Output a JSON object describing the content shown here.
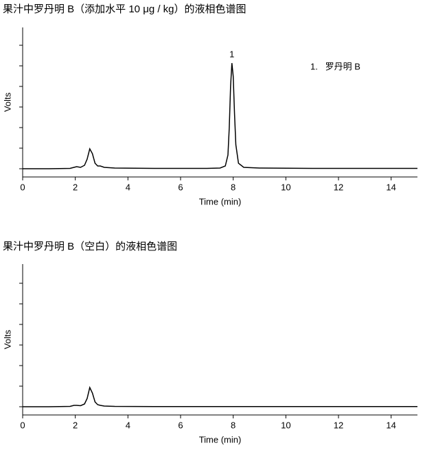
{
  "chart_data": [
    {
      "type": "line",
      "title": "果汁中罗丹明 B（添加水平 10 μg / kg）的液相色谱图",
      "xlabel": "Time (min)",
      "ylabel": "Volts",
      "annotation": "1",
      "legend_text": "1.   罗丹明 B",
      "x": [
        0,
        1,
        1.8,
        1.95,
        2.05,
        2.2,
        2.35,
        2.45,
        2.55,
        2.65,
        2.75,
        2.85,
        2.95,
        3.1,
        3.5,
        5,
        7,
        7.5,
        7.7,
        7.8,
        7.85,
        7.9,
        7.95,
        8.0,
        8.05,
        8.1,
        8.2,
        8.4,
        9,
        11,
        13,
        15
      ],
      "series": [
        {
          "color": "#000000",
          "values": [
            0,
            0,
            0.5,
            2,
            3,
            2,
            5,
            14,
            29,
            22,
            8,
            4,
            4,
            2,
            1,
            0.5,
            0.5,
            1,
            4,
            20,
            60,
            120,
            154,
            135,
            80,
            35,
            8,
            2,
            1,
            0.5,
            0.5,
            0.5
          ]
        }
      ],
      "xlim": [
        0,
        15
      ],
      "xticks": [
        0,
        2,
        4,
        6,
        8,
        10,
        12,
        14
      ],
      "ylim": [
        -12,
        206
      ]
    },
    {
      "type": "line",
      "title": "果汁中罗丹明 B（空白）的液相色谱图",
      "xlabel": "Time (min)",
      "ylabel": "Volts",
      "x": [
        0,
        1,
        1.8,
        1.95,
        2.05,
        2.2,
        2.35,
        2.45,
        2.55,
        2.65,
        2.75,
        2.85,
        2.95,
        3.1,
        3.5,
        5,
        8,
        11,
        15
      ],
      "series": [
        {
          "color": "#000000",
          "values": [
            0,
            0,
            0.5,
            2,
            2,
            1.5,
            4,
            12,
            28,
            20,
            7,
            3,
            2,
            1,
            0.5,
            0.3,
            0.3,
            0.3,
            0.3
          ]
        }
      ],
      "xlim": [
        0,
        15
      ],
      "xticks": [
        0,
        2,
        4,
        6,
        8,
        10,
        12,
        14
      ],
      "ylim": [
        -12,
        208
      ]
    }
  ]
}
